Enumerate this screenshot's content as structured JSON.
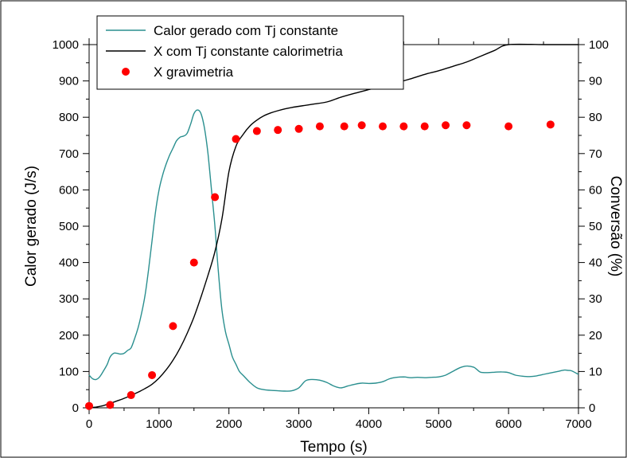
{
  "chart_data": {
    "type": "line",
    "xlabel": "Tempo (s)",
    "ylabel_left": "Calor gerado (J/s)",
    "ylabel_right": "Conversão (%)",
    "xlim": [
      0,
      7000
    ],
    "ylim_left": [
      0,
      1000
    ],
    "ylim_right": [
      0,
      100
    ],
    "x_ticks": [
      0,
      1000,
      2000,
      3000,
      4000,
      5000,
      6000,
      7000
    ],
    "y_left_ticks": [
      0,
      100,
      200,
      300,
      400,
      500,
      600,
      700,
      800,
      900,
      1000
    ],
    "y_right_ticks": [
      0,
      10,
      20,
      30,
      40,
      50,
      60,
      70,
      80,
      90,
      100
    ],
    "grid": false,
    "legend_position": "top-center",
    "series": [
      {
        "name": "Calor gerado com Tj constante",
        "axis": "left",
        "color": "#2a8f8f",
        "style": "line",
        "x": [
          0,
          50,
          100,
          150,
          200,
          260,
          300,
          350,
          400,
          450,
          500,
          550,
          600,
          650,
          700,
          750,
          800,
          850,
          900,
          950,
          1000,
          1050,
          1100,
          1150,
          1200,
          1250,
          1300,
          1350,
          1400,
          1450,
          1500,
          1550,
          1600,
          1650,
          1700,
          1750,
          1800,
          1830,
          1860,
          1900,
          1950,
          2000,
          2050,
          2100,
          2150,
          2200,
          2300,
          2400,
          2500,
          2600,
          2700,
          2800,
          2900,
          3000,
          3100,
          3200,
          3300,
          3400,
          3500,
          3600,
          3700,
          3800,
          3900,
          4000,
          4100,
          4200,
          4300,
          4400,
          4500,
          4600,
          4700,
          4800,
          4900,
          5000,
          5100,
          5200,
          5300,
          5400,
          5500,
          5550,
          5600,
          5700,
          5800,
          5900,
          6000,
          6100,
          6200,
          6300,
          6400,
          6500,
          6600,
          6700,
          6800,
          6850,
          6900,
          7000
        ],
        "y": [
          90,
          80,
          78,
          85,
          100,
          120,
          140,
          150,
          150,
          148,
          150,
          158,
          165,
          190,
          220,
          260,
          310,
          380,
          460,
          540,
          600,
          640,
          670,
          695,
          715,
          735,
          745,
          748,
          755,
          780,
          810,
          820,
          810,
          770,
          700,
          600,
          500,
          420,
          350,
          270,
          210,
          175,
          140,
          120,
          100,
          90,
          70,
          55,
          50,
          48,
          47,
          46,
          47,
          55,
          75,
          78,
          76,
          70,
          60,
          55,
          60,
          65,
          68,
          67,
          68,
          72,
          80,
          84,
          85,
          83,
          84,
          83,
          84,
          85,
          90,
          100,
          110,
          115,
          112,
          105,
          98,
          97,
          98,
          99,
          97,
          90,
          87,
          86,
          88,
          92,
          96,
          100,
          104,
          103,
          102,
          92
        ],
        "_x_pairs_note": ""
      },
      {
        "name": "X com Tj constante calorimetria",
        "axis": "right",
        "color": "#000000",
        "style": "line",
        "x": [
          0,
          100,
          200,
          300,
          400,
          500,
          600,
          700,
          800,
          900,
          1000,
          1100,
          1200,
          1300,
          1400,
          1500,
          1600,
          1700,
          1800,
          1900,
          2000,
          2100,
          2200,
          2300,
          2400,
          2500,
          2600,
          2700,
          2800,
          2900,
          3000,
          3200,
          3400,
          3600,
          3800,
          4000,
          4200,
          4400,
          4600,
          4800,
          5000,
          5200,
          5400,
          5600,
          5800,
          6000,
          6500,
          7000
        ],
        "y": [
          0,
          0.2,
          0.6,
          1.2,
          1.9,
          2.6,
          3.4,
          4.3,
          5.3,
          6.5,
          8.2,
          10.4,
          13.1,
          16.4,
          20.4,
          25.0,
          30.5,
          36.5,
          43.0,
          52.0,
          65.0,
          72.0,
          75.2,
          77.6,
          79.2,
          80.4,
          81.2,
          81.8,
          82.3,
          82.7,
          83.0,
          83.6,
          84.2,
          85.5,
          86.6,
          87.6,
          88.5,
          89.5,
          90.6,
          91.8,
          92.8,
          94.0,
          95.2,
          96.8,
          98.4,
          100,
          100,
          100
        ]
      },
      {
        "name": "X gravimetria",
        "axis": "right",
        "color": "#ff0000",
        "style": "scatter",
        "x": [
          0,
          300,
          600,
          900,
          1200,
          1500,
          1800,
          2100,
          2400,
          2700,
          3000,
          3300,
          3650,
          3900,
          4200,
          4500,
          4800,
          5100,
          5400,
          6000,
          6600
        ],
        "y": [
          0.5,
          0.8,
          3.5,
          9.0,
          22.5,
          40.0,
          58.0,
          74.0,
          76.2,
          76.5,
          76.8,
          77.5,
          77.5,
          77.8,
          77.5,
          77.5,
          77.5,
          77.8,
          77.8,
          77.5,
          78.0
        ]
      }
    ]
  }
}
